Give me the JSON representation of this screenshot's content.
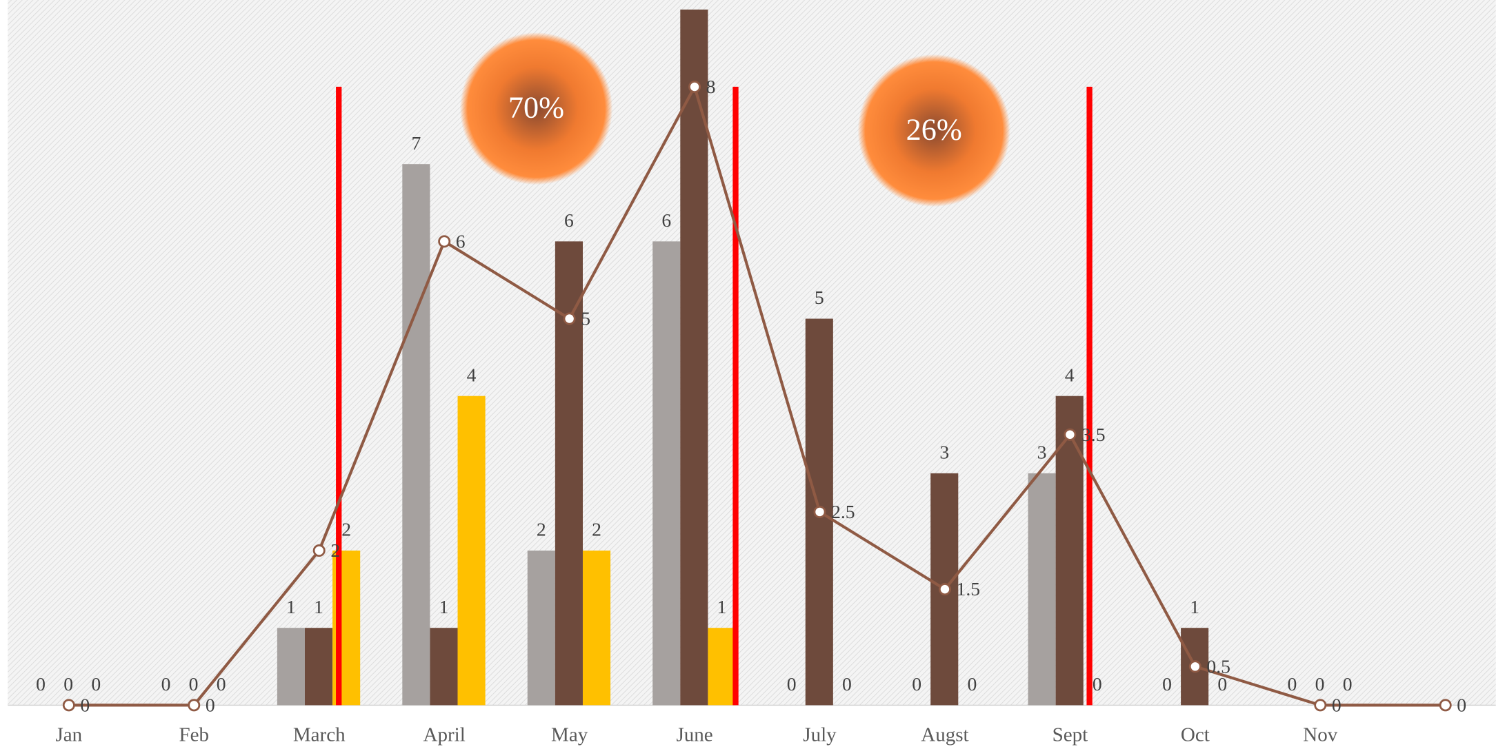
{
  "chart_data": {
    "type": "bar",
    "categories": [
      "Jan",
      "Feb",
      "March",
      "April",
      "May",
      "June",
      "July",
      "Augst",
      "Sept",
      "Oct",
      "Nov",
      null
    ],
    "series": [
      {
        "color": "#a6a19f",
        "values": [
          0,
          0,
          1,
          7,
          2,
          6,
          0,
          0,
          3,
          0,
          0,
          null
        ]
      },
      {
        "color": "#6e4a3c",
        "values": [
          0,
          0,
          1,
          1,
          6,
          9,
          5,
          3,
          4,
          1,
          0,
          null
        ]
      },
      {
        "color": "#ffc000",
        "values": [
          0,
          0,
          2,
          4,
          2,
          1,
          0,
          0,
          0,
          0,
          0,
          null
        ]
      },
      {
        "type": "line",
        "color": "#8f5a44",
        "values": [
          0,
          0,
          2,
          6,
          5,
          8,
          2.5,
          1.5,
          3.5,
          0.5,
          0,
          0
        ]
      }
    ],
    "ylim": [
      0,
      9
    ],
    "annotations": [
      "70%",
      "26%"
    ]
  }
}
